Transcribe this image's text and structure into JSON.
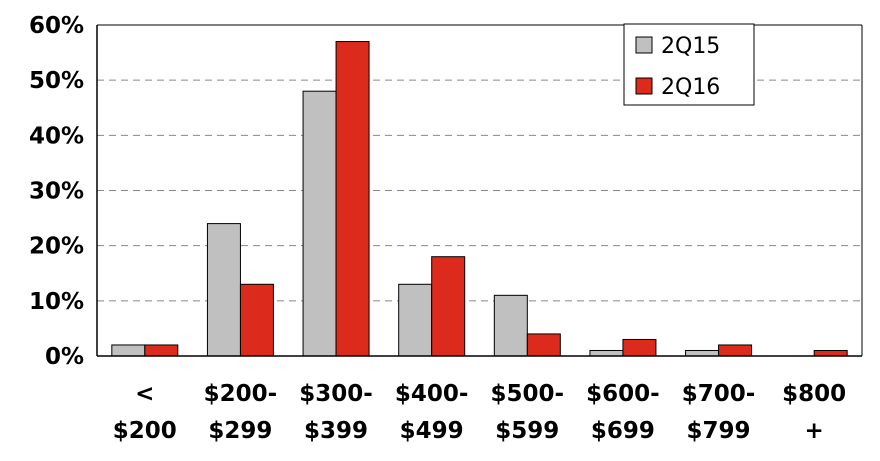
{
  "chart_data": {
    "type": "bar",
    "categories": [
      [
        "<",
        "$200"
      ],
      [
        "$200-",
        "$299"
      ],
      [
        "$300-",
        "$399"
      ],
      [
        "$400-",
        "$499"
      ],
      [
        "$500-",
        "$599"
      ],
      [
        "$600-",
        "$699"
      ],
      [
        "$700-",
        "$799"
      ],
      [
        "$800",
        "+"
      ]
    ],
    "series": [
      {
        "name": "2Q15",
        "color": "#c0c0c0",
        "values": [
          2,
          24,
          48,
          13,
          11,
          1,
          1,
          0
        ]
      },
      {
        "name": "2Q16",
        "color": "#dc2a1c",
        "values": [
          2,
          13,
          57,
          18,
          4,
          3,
          2,
          1
        ]
      }
    ],
    "ylim": [
      0,
      60
    ],
    "yticks": [
      "0%",
      "10%",
      "20%",
      "30%",
      "40%",
      "50%",
      "60%"
    ],
    "grid": "horizontal dashed",
    "legend_position": "top-right",
    "title": "",
    "xlabel": "",
    "ylabel": ""
  }
}
